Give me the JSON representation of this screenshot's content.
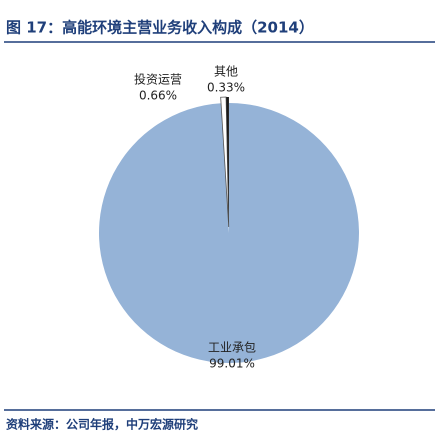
{
  "chart_data": {
    "type": "pie",
    "title": "图 17：高能环境主营业务收入构成（2014）",
    "source": "资料来源：公司年报，中万宏源研究",
    "categories": [
      "工业承包",
      "投资运营",
      "其他"
    ],
    "values": [
      99.01,
      0.66,
      0.33
    ],
    "value_labels": [
      "99.01%",
      "0.66%",
      "0.33%"
    ],
    "colors": [
      "#95b3d7",
      "#ffffff",
      "#1a1a1a"
    ]
  }
}
